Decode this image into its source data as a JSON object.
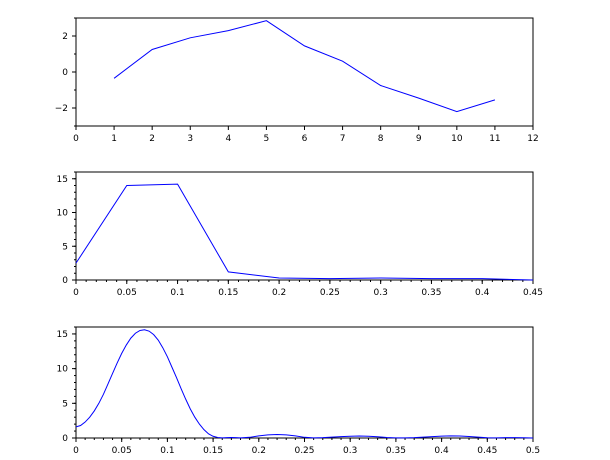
{
  "chart_data": [
    {
      "type": "line",
      "title": "",
      "xlabel": "",
      "ylabel": "",
      "xlim": [
        0,
        12
      ],
      "ylim": [
        -3,
        3
      ],
      "xticks": [
        0,
        1,
        2,
        3,
        4,
        5,
        6,
        7,
        8,
        9,
        10,
        11,
        12
      ],
      "xtick_labels": [
        "0",
        "1",
        "2",
        "3",
        "4",
        "5",
        "6",
        "7",
        "8",
        "9",
        "10",
        "11",
        "12"
      ],
      "xminor_step": null,
      "yticks": [
        -2,
        0,
        2
      ],
      "ytick_labels": [
        "−2",
        "0",
        "2"
      ],
      "yminor_step": 1,
      "grid": false,
      "color": "#0000ff",
      "series": [
        {
          "x": [
            1,
            2,
            3,
            4,
            5,
            6,
            7,
            8,
            9,
            10,
            11
          ],
          "values": [
            -0.35,
            1.25,
            1.9,
            2.3,
            2.85,
            1.45,
            0.6,
            -0.75,
            -1.45,
            -2.2,
            -1.55
          ]
        }
      ]
    },
    {
      "type": "line",
      "title": "",
      "xlabel": "",
      "ylabel": "",
      "xlim": [
        0,
        0.45
      ],
      "ylim": [
        0,
        16
      ],
      "xticks": [
        0,
        0.05,
        0.1,
        0.15,
        0.2,
        0.25,
        0.3,
        0.35,
        0.4,
        0.45
      ],
      "xtick_labels": [
        "0",
        "0.05",
        "0.1",
        "0.15",
        "0.2",
        "0.25",
        "0.3",
        "0.35",
        "0.4",
        "0.45"
      ],
      "xminor_step": 0.01,
      "yticks": [
        0,
        5,
        10,
        15
      ],
      "ytick_labels": [
        "0",
        "5",
        "10",
        "15"
      ],
      "yminor_step": 1,
      "grid": false,
      "color": "#0000ff",
      "series": [
        {
          "x": [
            0,
            0.05,
            0.1,
            0.15,
            0.2,
            0.25,
            0.3,
            0.35,
            0.4,
            0.45
          ],
          "values": [
            2.5,
            14.0,
            14.2,
            1.2,
            0.3,
            0.2,
            0.3,
            0.2,
            0.2,
            0.0
          ]
        }
      ]
    },
    {
      "type": "line",
      "title": "",
      "xlabel": "",
      "ylabel": "",
      "xlim": [
        0,
        0.5
      ],
      "ylim": [
        0,
        16
      ],
      "xticks": [
        0,
        0.05,
        0.1,
        0.15,
        0.2,
        0.25,
        0.3,
        0.35,
        0.4,
        0.45,
        0.5
      ],
      "xtick_labels": [
        "0",
        "0.05",
        "0.1",
        "0.15",
        "0.2",
        "0.25",
        "0.3",
        "0.35",
        "0.4",
        "0.45",
        "0.5"
      ],
      "xminor_step": 0.01,
      "yticks": [
        0,
        5,
        10,
        15
      ],
      "ytick_labels": [
        "0",
        "5",
        "10",
        "15"
      ],
      "yminor_step": 1,
      "grid": false,
      "color": "#0000ff",
      "series": [
        {
          "x": [
            0,
            0.005,
            0.01,
            0.015,
            0.02,
            0.025,
            0.03,
            0.035,
            0.04,
            0.045,
            0.05,
            0.055,
            0.06,
            0.065,
            0.07,
            0.075,
            0.08,
            0.085,
            0.09,
            0.095,
            0.1,
            0.105,
            0.11,
            0.115,
            0.12,
            0.125,
            0.13,
            0.135,
            0.14,
            0.145,
            0.15,
            0.155,
            0.16,
            0.165,
            0.17,
            0.175,
            0.18,
            0.19,
            0.2,
            0.21,
            0.22,
            0.23,
            0.24,
            0.25,
            0.26,
            0.27,
            0.28,
            0.29,
            0.3,
            0.31,
            0.32,
            0.33,
            0.34,
            0.35,
            0.36,
            0.37,
            0.38,
            0.39,
            0.4,
            0.41,
            0.42,
            0.43,
            0.44,
            0.45,
            0.46,
            0.47,
            0.48,
            0.49,
            0.5
          ],
          "values": [
            1.6,
            1.8,
            2.3,
            3.0,
            3.9,
            5.0,
            6.3,
            7.8,
            9.3,
            10.8,
            12.2,
            13.4,
            14.4,
            15.1,
            15.5,
            15.6,
            15.4,
            14.9,
            14.1,
            13.0,
            11.7,
            10.2,
            8.7,
            7.1,
            5.6,
            4.2,
            3.0,
            2.0,
            1.2,
            0.6,
            0.25,
            0.08,
            0.02,
            0.05,
            0.08,
            0.05,
            0.02,
            0.1,
            0.3,
            0.45,
            0.5,
            0.45,
            0.3,
            0.1,
            0.02,
            0.05,
            0.12,
            0.2,
            0.25,
            0.28,
            0.25,
            0.18,
            0.08,
            0.02,
            0.02,
            0.05,
            0.12,
            0.2,
            0.27,
            0.3,
            0.28,
            0.22,
            0.12,
            0.04,
            0.02,
            0.05,
            0.06,
            0.03,
            0.0
          ]
        }
      ]
    }
  ]
}
